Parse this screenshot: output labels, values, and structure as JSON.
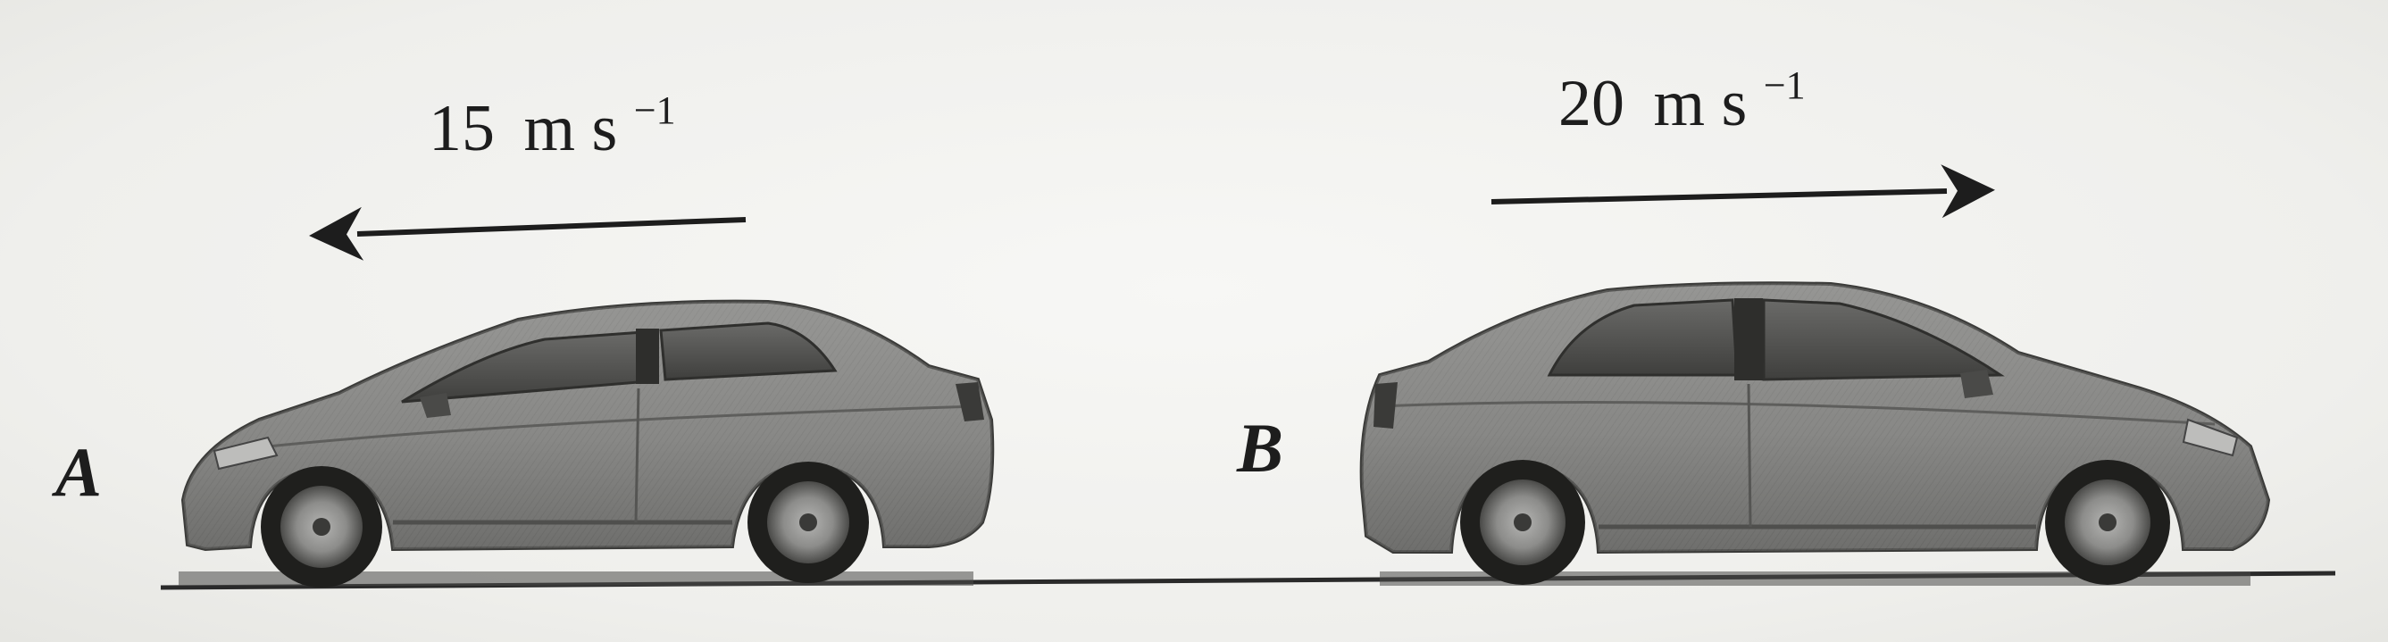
{
  "car_a": {
    "label": "A",
    "speed": "15",
    "speed_unit": "m s",
    "speed_exponent": "−1",
    "direction": "left"
  },
  "car_b": {
    "label": "B",
    "speed": "20",
    "speed_unit": "m s",
    "speed_exponent": "−1",
    "direction": "right"
  },
  "colors": {
    "ink": "#1d1d1d",
    "car_body": "#8a8a88",
    "car_dark": "#3a3a3a",
    "window": "#555553",
    "background": "#f3f3f1"
  }
}
